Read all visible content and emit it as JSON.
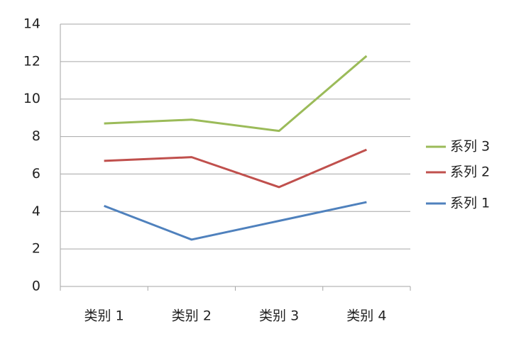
{
  "chart_data": {
    "type": "line",
    "stacked": true,
    "categories": [
      "类别 1",
      "类别 2",
      "类别 3",
      "类别 4"
    ],
    "series": [
      {
        "name": "系列 1",
        "color": "#4f81bd",
        "values": [
          4.3,
          2.5,
          3.5,
          4.5
        ]
      },
      {
        "name": "系列 2",
        "color": "#c0504d",
        "values": [
          2.4,
          4.4,
          1.8,
          2.8
        ]
      },
      {
        "name": "系列 3",
        "color": "#9bbb59",
        "values": [
          2,
          2,
          3,
          5
        ]
      }
    ],
    "ylim": [
      0,
      14
    ],
    "yticks": [
      0,
      2,
      4,
      6,
      8,
      10,
      12,
      14
    ],
    "grid": true,
    "legend": "right"
  }
}
